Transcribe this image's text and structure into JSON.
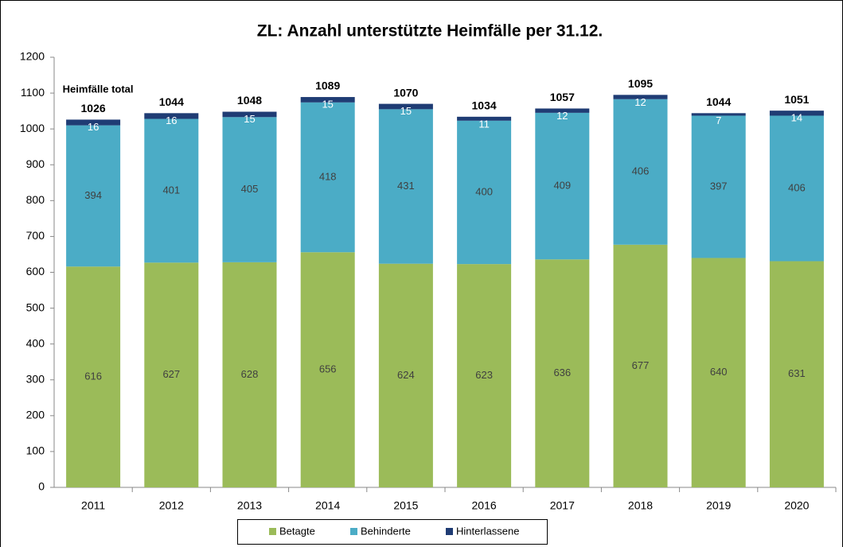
{
  "chart_data": {
    "type": "bar",
    "stacked": true,
    "title": "ZL: Anzahl unterstützte Heimfälle per 31.12.",
    "annotation": "Heimfälle total",
    "categories": [
      "2011",
      "2012",
      "2013",
      "2014",
      "2015",
      "2016",
      "2017",
      "2018",
      "2019",
      "2020"
    ],
    "series": [
      {
        "name": "Betagte",
        "color": "#9bbb59",
        "values": [
          616,
          627,
          628,
          656,
          624,
          623,
          636,
          677,
          640,
          631
        ]
      },
      {
        "name": "Behinderte",
        "color": "#4bacc6",
        "values": [
          394,
          401,
          405,
          418,
          431,
          400,
          409,
          406,
          397,
          406
        ]
      },
      {
        "name": "Hinterlassene",
        "color": "#1f3c74",
        "values": [
          16,
          16,
          15,
          15,
          15,
          11,
          12,
          12,
          7,
          14
        ]
      }
    ],
    "totals": [
      1026,
      1044,
      1048,
      1089,
      1070,
      1034,
      1057,
      1095,
      1044,
      1051
    ],
    "ylim": [
      0,
      1200
    ],
    "yticks": [
      0,
      100,
      200,
      300,
      400,
      500,
      600,
      700,
      800,
      900,
      1000,
      1100,
      1200
    ],
    "grid": false,
    "legend": "bottom"
  }
}
